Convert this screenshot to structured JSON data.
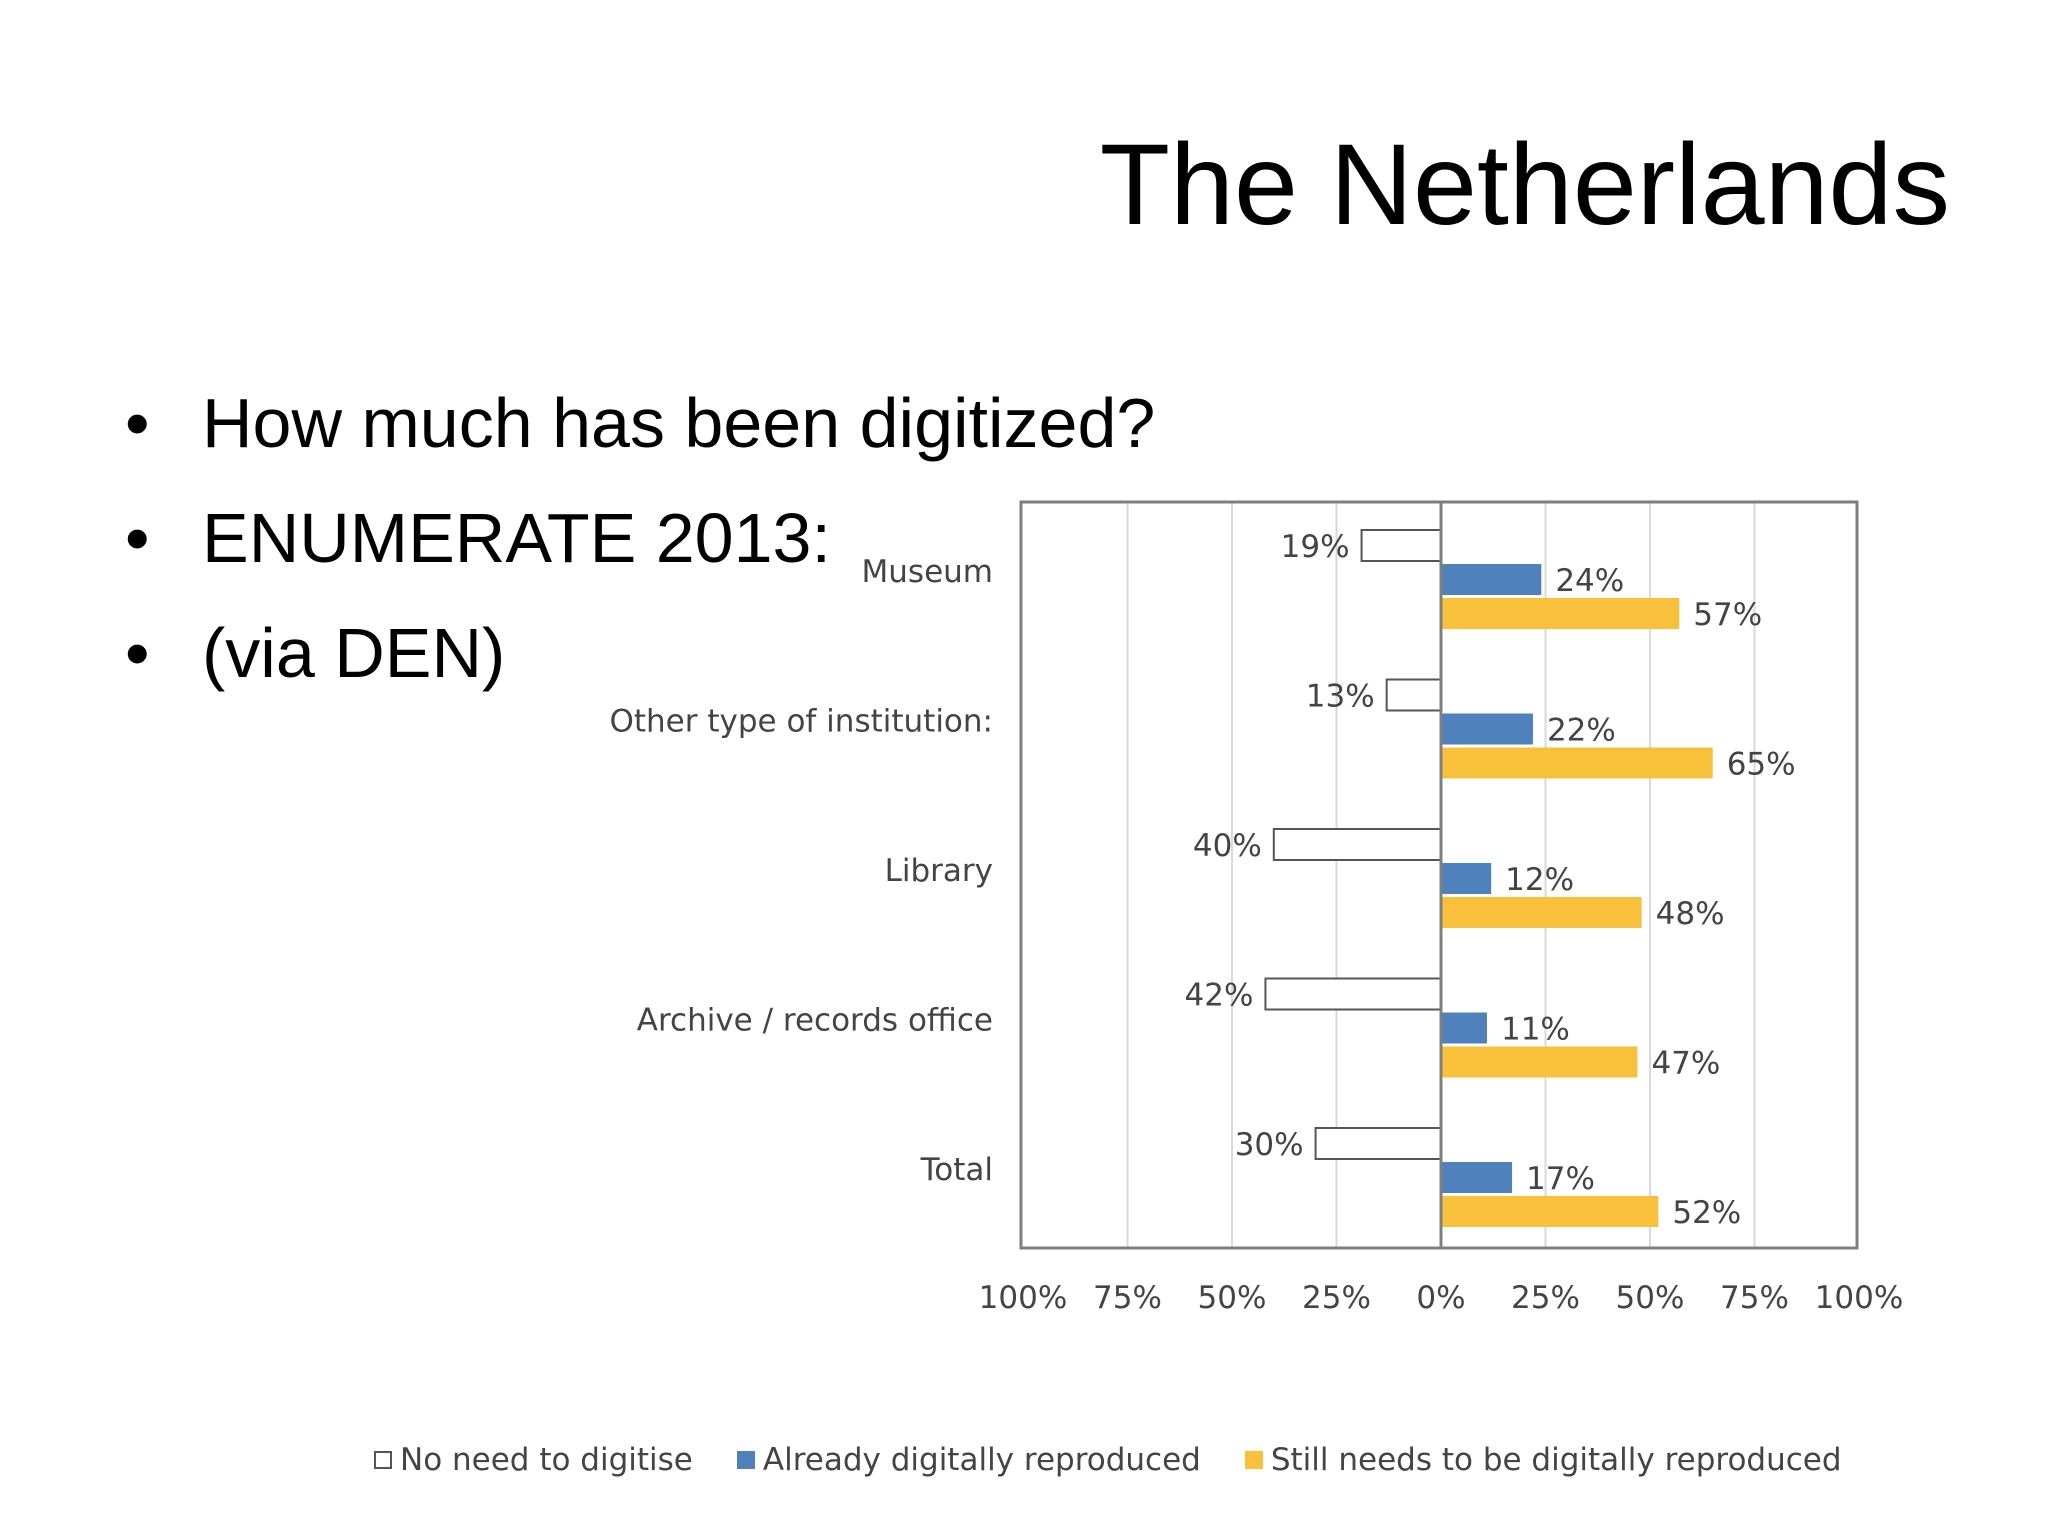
{
  "slide": {
    "title": "The Netherlands",
    "bullets": [
      "How much has been digitized?",
      "ENUMERATE 2013:",
      "(via DEN)"
    ]
  },
  "chart_data": {
    "type": "bar",
    "orientation": "horizontal-diverging",
    "categories": [
      "Museum",
      "Other type of institution:",
      "Library",
      "Archive / records office",
      "Total"
    ],
    "series": [
      {
        "name": "No need to digitise",
        "direction": "left",
        "color": "#ffffff",
        "values": [
          19,
          13,
          40,
          42,
          30
        ],
        "labels": [
          "19%",
          "13%",
          "40%",
          "42%",
          "30%"
        ]
      },
      {
        "name": "Already digitally reproduced",
        "direction": "right",
        "color": "#4f81bd",
        "values": [
          24,
          22,
          12,
          11,
          17
        ],
        "labels": [
          "24%",
          "22%",
          "12%",
          "11%",
          "17%"
        ]
      },
      {
        "name": "Still needs to be digitally reproduced",
        "direction": "right",
        "color": "#f9c03b",
        "values": [
          57,
          65,
          48,
          47,
          52
        ],
        "labels": [
          "57%",
          "65%",
          "48%",
          "47%",
          "52%"
        ]
      }
    ],
    "xlim": [
      -100,
      100
    ],
    "xticks": [
      "100%",
      "75%",
      "50%",
      "25%",
      "0%",
      "25%",
      "50%",
      "75%",
      "100%"
    ],
    "grid": true,
    "legend_position": "bottom"
  }
}
